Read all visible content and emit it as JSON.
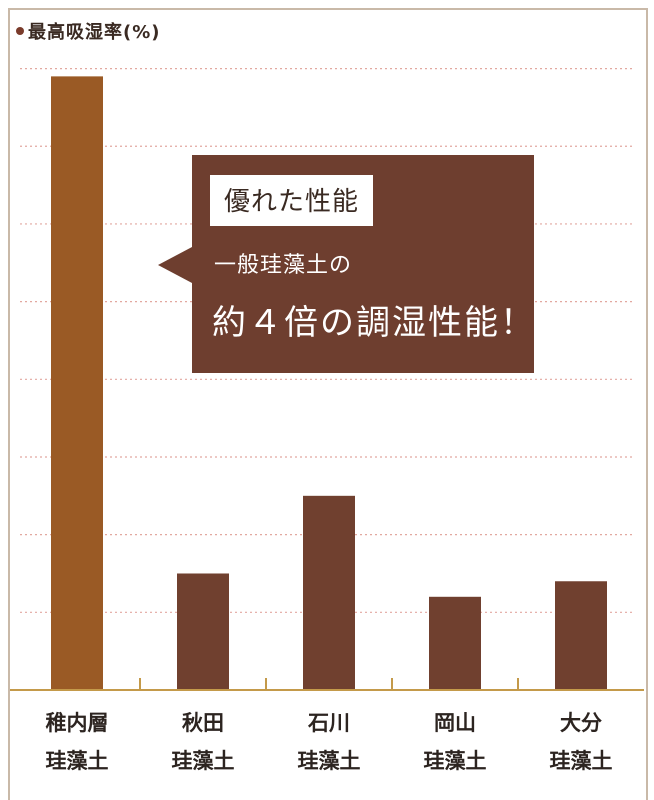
{
  "title": "最高吸湿率(%)",
  "callout": {
    "badge": "優れた性能",
    "line1": "一般珪藻土の",
    "line2": "約４倍の調湿性能！"
  },
  "colors": {
    "highlight_bar": "#9a5a25",
    "bar": "#70402f",
    "callout": "#6e3e2f",
    "grid": "#e2a8a0",
    "axis": "#c49a4a"
  },
  "chart_data": {
    "type": "bar",
    "categories": [
      "稚内層珪藻土",
      "秋田珪藻土",
      "石川珪藻土",
      "岡山珪藻土",
      "大分珪藻土"
    ],
    "category_lines": [
      [
        "稚内層",
        "珪藻土"
      ],
      [
        "秋田",
        "珪藻土"
      ],
      [
        "石川",
        "珪藻土"
      ],
      [
        "岡山",
        "珪藻土"
      ],
      [
        "大分",
        "珪藻土"
      ]
    ],
    "values": [
      7.9,
      1.5,
      2.5,
      1.2,
      1.4
    ],
    "ylim": [
      0,
      8.6
    ],
    "grid_step": 1,
    "ylabel": "最高吸湿率(%)",
    "grid": true,
    "highlight_index": 0
  }
}
